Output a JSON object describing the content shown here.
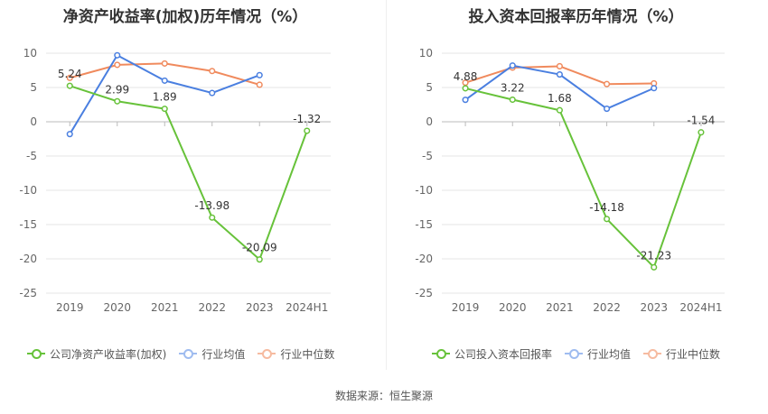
{
  "source_label": "数据来源：恒生聚源",
  "colors": {
    "company": "#67c23a",
    "industry_avg": "#4a7fe0",
    "industry_median": "#f08a5d",
    "grid": "#e6e6e6",
    "axis_text": "#666666"
  },
  "chart_data": [
    {
      "type": "line",
      "title": "净资产收益率(加权)历年情况（%）",
      "categories": [
        "2019",
        "2020",
        "2021",
        "2022",
        "2023",
        "2024H1"
      ],
      "ylim": [
        -25,
        10
      ],
      "yticks": [
        10,
        5,
        0,
        -5,
        -10,
        -15,
        -20,
        -25
      ],
      "grid": true,
      "legend_position": "bottom",
      "series": [
        {
          "name": "公司净资产收益率(加权)",
          "color": "#67c23a",
          "values": [
            5.24,
            2.99,
            1.89,
            -13.98,
            -20.09,
            -1.32
          ],
          "labels": [
            "5.24",
            "2.99",
            "1.89",
            "-13.98",
            "-20.09",
            "-1.32"
          ]
        },
        {
          "name": "行业均值",
          "color": "#4a7fe0",
          "values": [
            -1.8,
            9.7,
            6.0,
            4.2,
            6.8,
            null
          ]
        },
        {
          "name": "行业中位数",
          "color": "#f08a5d",
          "values": [
            6.4,
            8.3,
            8.5,
            7.4,
            5.4,
            null
          ]
        }
      ]
    },
    {
      "type": "line",
      "title": "投入资本回报率历年情况（%）",
      "categories": [
        "2019",
        "2020",
        "2021",
        "2022",
        "2023",
        "2024H1"
      ],
      "ylim": [
        -25,
        10
      ],
      "yticks": [
        10,
        5,
        0,
        -5,
        -10,
        -15,
        -20,
        -25
      ],
      "grid": true,
      "legend_position": "bottom",
      "series": [
        {
          "name": "公司投入资本回报率",
          "color": "#67c23a",
          "values": [
            4.88,
            3.22,
            1.68,
            -14.18,
            -21.23,
            -1.54
          ],
          "labels": [
            "4.88",
            "3.22",
            "1.68",
            "-14.18",
            "-21.23",
            "-1.54"
          ]
        },
        {
          "name": "行业均值",
          "color": "#4a7fe0",
          "values": [
            3.2,
            8.2,
            6.9,
            1.9,
            4.9,
            null
          ]
        },
        {
          "name": "行业中位数",
          "color": "#f08a5d",
          "values": [
            5.7,
            7.9,
            8.1,
            5.5,
            5.6,
            null
          ]
        }
      ]
    }
  ]
}
